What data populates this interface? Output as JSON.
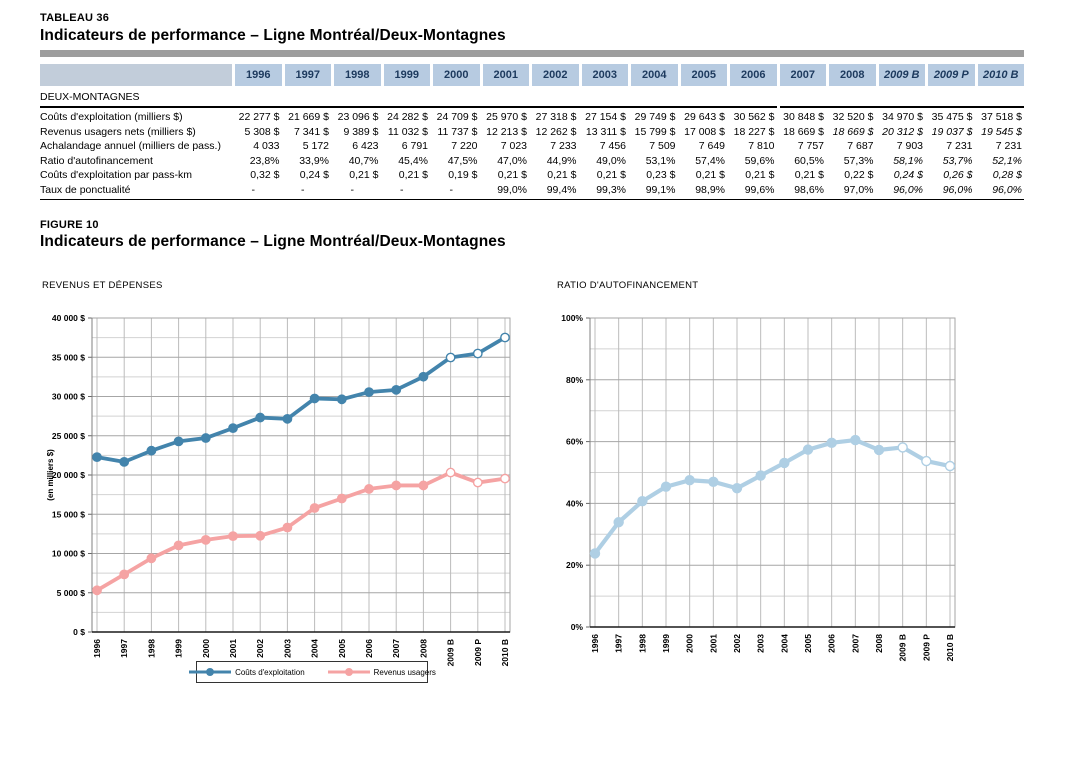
{
  "header": {
    "table_label": "TABLEAU 36",
    "table_title": "Indicateurs de performance – Ligne Montréal/Deux-Montagnes",
    "figure_label": "FIGURE 10",
    "figure_title": "Indicateurs de performance – Ligne Montréal/Deux-Montagnes"
  },
  "table": {
    "section": "DEUX-MONTAGNES",
    "columns": [
      "1996",
      "1997",
      "1998",
      "1999",
      "2000",
      "2001",
      "2002",
      "2003",
      "2004",
      "2005",
      "2006",
      "2007",
      "2008",
      "2009 B",
      "2009 P",
      "2010 B"
    ],
    "header_italic_from": 13,
    "rows": [
      {
        "label": "Coûts d'exploitation (milliers $)",
        "values": [
          "22 277 $",
          "21 669 $",
          "23 096 $",
          "24 282 $",
          "24 709 $",
          "25 970 $",
          "27 318 $",
          "27 154 $",
          "29 749 $",
          "29 643 $",
          "30 562 $",
          "30 848 $",
          "32 520 $",
          "34 970 $",
          "35 475 $",
          "37 518 $"
        ],
        "italic_from": null
      },
      {
        "label": "Revenus usagers nets (milliers $)",
        "values": [
          "5 308 $",
          "7 341 $",
          "9 389 $",
          "11 032 $",
          "11 737 $",
          "12 213 $",
          "12 262 $",
          "13 311 $",
          "15 799 $",
          "17 008 $",
          "18 227 $",
          "18 669 $",
          "18 669 $",
          "20 312 $",
          "19 037 $",
          "19 545 $"
        ],
        "italic_from": 12
      },
      {
        "label": "Achalandage annuel (milliers de pass.)",
        "values": [
          "4 033",
          "5 172",
          "6 423",
          "6 791",
          "7 220",
          "7 023",
          "7 233",
          "7 456",
          "7 509",
          "7 649",
          "7 810",
          "7 757",
          "7 687",
          "7 903",
          "7 231",
          "7 231"
        ],
        "italic_from": null
      },
      {
        "label": "Ratio d'autofinancement",
        "values": [
          "23,8%",
          "33,9%",
          "40,7%",
          "45,4%",
          "47,5%",
          "47,0%",
          "44,9%",
          "49,0%",
          "53,1%",
          "57,4%",
          "59,6%",
          "60,5%",
          "57,3%",
          "58,1%",
          "53,7%",
          "52,1%"
        ],
        "italic_from": 13
      },
      {
        "label": "Coûts d'exploitation par pass-km",
        "values": [
          "0,32 $",
          "0,24 $",
          "0,21 $",
          "0,21 $",
          "0,19 $",
          "0,21 $",
          "0,21 $",
          "0,21 $",
          "0,23 $",
          "0,21 $",
          "0,21 $",
          "0,21 $",
          "0,22 $",
          "0,24 $",
          "0,26 $",
          "0,28 $"
        ],
        "italic_from": 13
      },
      {
        "label": "Taux de ponctualité",
        "values": [
          "-",
          "-",
          "-",
          "-",
          "-",
          "99,0%",
          "99,4%",
          "99,3%",
          "99,1%",
          "98,9%",
          "99,6%",
          "98,6%",
          "97,0%",
          "96,0%",
          "96,0%",
          "96,0%"
        ],
        "italic_from": 13
      }
    ]
  },
  "chart_data": [
    {
      "type": "line",
      "title": "REVENUS ET DÉPENSES",
      "ylabel": "(en milliers $)",
      "categories": [
        "1996",
        "1997",
        "1998",
        "1999",
        "2000",
        "2001",
        "2002",
        "2003",
        "2004",
        "2005",
        "2006",
        "2007",
        "2008",
        "2009 B",
        "2009 P",
        "2010 B"
      ],
      "series": [
        {
          "name": "Coûts d'exploitation",
          "color": "#4384ac",
          "values": [
            22277,
            21669,
            23096,
            24282,
            24709,
            25970,
            27318,
            27154,
            29749,
            29643,
            30562,
            30848,
            32520,
            34970,
            35475,
            37518
          ]
        },
        {
          "name": "Revenus usagers",
          "color": "#f5a3a3",
          "values": [
            5308,
            7341,
            9389,
            11032,
            11737,
            12213,
            12262,
            13311,
            15799,
            17008,
            18227,
            18669,
            18669,
            20312,
            19037,
            19545
          ]
        }
      ],
      "ylim": [
        0,
        40000
      ],
      "ytick_step": 5000,
      "yminor_step": 2500,
      "ytick_format": "money",
      "open_marker_from": 13,
      "grid": true,
      "legend_position": "bottom"
    },
    {
      "type": "line",
      "title": "RATIO D'AUTOFINANCEMENT",
      "ylabel": "",
      "categories": [
        "1996",
        "1997",
        "1998",
        "1999",
        "2000",
        "2001",
        "2002",
        "2003",
        "2004",
        "2005",
        "2006",
        "2007",
        "2008",
        "2009 B",
        "2009 P",
        "2010 B"
      ],
      "series": [
        {
          "name": "Ratio d'autofinancement",
          "color": "#afcfe4",
          "values": [
            23.8,
            33.9,
            40.7,
            45.4,
            47.5,
            47.0,
            44.9,
            49.0,
            53.1,
            57.4,
            59.6,
            60.5,
            57.3,
            58.1,
            53.7,
            52.1
          ]
        }
      ],
      "ylim": [
        0,
        100
      ],
      "ytick_step": 20,
      "yminor_step": 10,
      "ytick_format": "percent",
      "open_marker_from": 13,
      "grid": true,
      "legend_position": "none"
    }
  ],
  "colors": {
    "table_header_bg": "#b7cbe1",
    "table_header_blank_bg": "#c2cdda",
    "table_header_text": "#1d3a5e",
    "divider_bar": "#9d9d9d"
  }
}
